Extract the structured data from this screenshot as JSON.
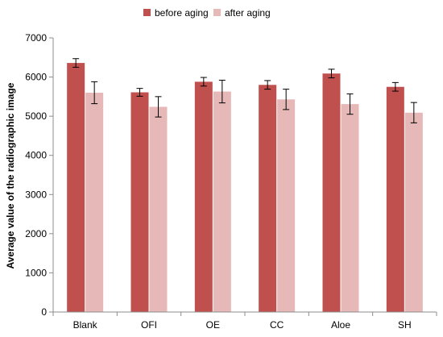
{
  "chart_data": {
    "type": "bar",
    "categories": [
      "Blank",
      "OFI",
      "OE",
      "CC",
      "Aloe",
      "SH"
    ],
    "series": [
      {
        "name": "before aging",
        "color": "#c0504d",
        "values": [
          6360,
          5610,
          5880,
          5800,
          6090,
          5750
        ],
        "errors": [
          110,
          100,
          110,
          110,
          110,
          110
        ]
      },
      {
        "name": "after aging",
        "color": "#e6b9b8",
        "values": [
          5600,
          5240,
          5630,
          5430,
          5310,
          5090
        ],
        "errors": [
          280,
          260,
          290,
          260,
          260,
          260
        ]
      }
    ],
    "ylabel": "Average value of the radiographic image",
    "ylim": [
      0,
      7000
    ],
    "yticks": [
      0,
      1000,
      2000,
      3000,
      4000,
      5000,
      6000,
      7000
    ],
    "grid": false,
    "legend": "top"
  }
}
